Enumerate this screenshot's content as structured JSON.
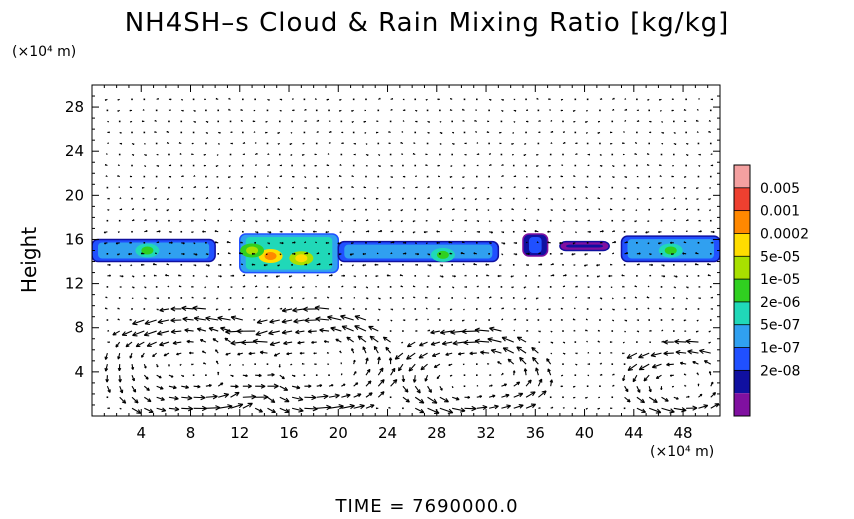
{
  "chart_data": {
    "type": "heatmap",
    "title": "NH4SH–s Cloud & Rain Mixing Ratio [kg/kg]",
    "ylabel": "Height",
    "y_unit": "(×10⁴ m)",
    "x_unit": "(×10⁴ m)",
    "xlim": [
      0,
      51
    ],
    "ylim": [
      0,
      30
    ],
    "xticks": [
      4,
      8,
      12,
      16,
      20,
      24,
      28,
      32,
      36,
      40,
      44,
      48
    ],
    "yticks": [
      4,
      8,
      12,
      16,
      20,
      24,
      28
    ],
    "colorbar": {
      "labels": [
        "0.005",
        "0.001",
        "0.0002",
        "5e-05",
        "1e-05",
        "2e-06",
        "5e-07",
        "1e-07",
        "2e-08"
      ],
      "colors": [
        "#f4a0a0",
        "#ee4030",
        "#ff8800",
        "#ffdd00",
        "#a8e000",
        "#30d020",
        "#20d8b8",
        "#30a0f0",
        "#2050ff",
        "#1010a0",
        "#8010a0"
      ]
    },
    "cloud_band": [
      {
        "x0": 0,
        "x1": 10,
        "y0": 14.0,
        "y1": 16.0,
        "level": 7
      },
      {
        "x0": 12,
        "x1": 20,
        "y0": 13.0,
        "y1": 16.5,
        "level": 6
      },
      {
        "x0": 20,
        "x1": 33,
        "y0": 14.0,
        "y1": 15.8,
        "level": 7
      },
      {
        "x0": 35,
        "x1": 37,
        "y0": 14.5,
        "y1": 16.5,
        "level": 8
      },
      {
        "x0": 38,
        "x1": 42,
        "y0": 15.0,
        "y1": 15.8,
        "level": 9
      },
      {
        "x0": 43,
        "x1": 51,
        "y0": 14.0,
        "y1": 16.3,
        "level": 7
      }
    ],
    "cloud_cores": [
      {
        "x": 14.5,
        "y": 14.5,
        "level": 2
      },
      {
        "x": 17.0,
        "y": 14.3,
        "level": 3
      },
      {
        "x": 13.0,
        "y": 15.0,
        "level": 4
      },
      {
        "x": 28.5,
        "y": 14.6,
        "level": 5
      },
      {
        "x": 4.5,
        "y": 15.0,
        "level": 5
      },
      {
        "x": 47.0,
        "y": 15.0,
        "level": 5
      }
    ],
    "vortices": [
      {
        "x": 8.0,
        "y": 4.5,
        "rx": 5.5,
        "ry": 4.2
      },
      {
        "x": 18.0,
        "y": 4.5,
        "rx": 5.5,
        "ry": 4.2
      },
      {
        "x": 31.0,
        "y": 3.6,
        "rx": 5.0,
        "ry": 3.5
      },
      {
        "x": 48.0,
        "y": 3.0,
        "rx": 4.0,
        "ry": 3.0
      }
    ]
  },
  "time_label": "TIME  =  7690000.0"
}
